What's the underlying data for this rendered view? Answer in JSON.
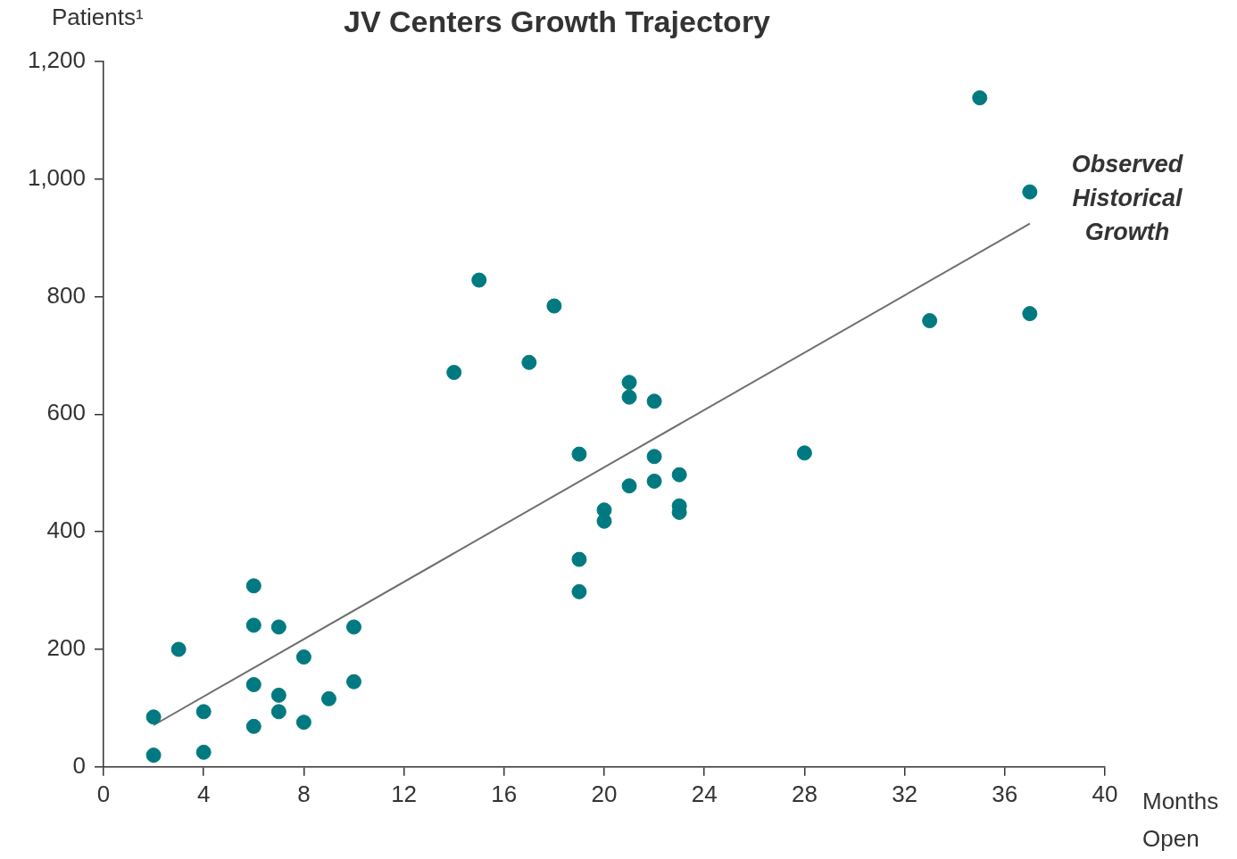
{
  "chart_data": {
    "type": "scatter",
    "title": "JV Centers Growth Trajectory",
    "xlabel": "Months Open",
    "ylabel": "Patients¹",
    "xlim": [
      0,
      40
    ],
    "xticks": [
      0,
      4,
      8,
      12,
      16,
      20,
      24,
      28,
      32,
      36,
      40
    ],
    "ylim": [
      0,
      1200
    ],
    "yticks": [
      {
        "value": 0,
        "label": "0"
      },
      {
        "value": 200,
        "label": "200"
      },
      {
        "value": 400,
        "label": "400"
      },
      {
        "value": 600,
        "label": "600"
      },
      {
        "value": 800,
        "label": "800"
      },
      {
        "value": 1000,
        "label": "1,000"
      },
      {
        "value": 1200,
        "label": "1,200"
      }
    ],
    "grid": false,
    "legend": false,
    "annotations": [
      "Observed Historical Growth"
    ],
    "series": [
      {
        "type": "scatter",
        "marker": "circle",
        "color": "#007a80",
        "x": [
          2,
          2,
          3,
          4,
          4,
          6,
          6,
          6,
          6,
          7,
          7,
          7,
          8,
          8,
          9,
          10,
          10,
          14,
          15,
          17,
          18,
          19,
          19,
          19,
          20,
          20,
          21,
          21,
          21,
          22,
          22,
          22,
          23,
          23,
          23,
          28,
          33,
          35,
          37,
          37
        ],
        "values": [
          20,
          85,
          200,
          94,
          25,
          308,
          241,
          140,
          69,
          238,
          122,
          94,
          187,
          76,
          116,
          238,
          145,
          671,
          828,
          688,
          784,
          532,
          353,
          298,
          437,
          418,
          654,
          629,
          478,
          622,
          528,
          486,
          497,
          444,
          433,
          534,
          759,
          1138,
          978,
          771
        ]
      },
      {
        "type": "line",
        "marker": "none",
        "color": "#6e6e6e",
        "line_style": "solid",
        "x": [
          2,
          37
        ],
        "values": [
          71,
          924
        ]
      }
    ]
  }
}
